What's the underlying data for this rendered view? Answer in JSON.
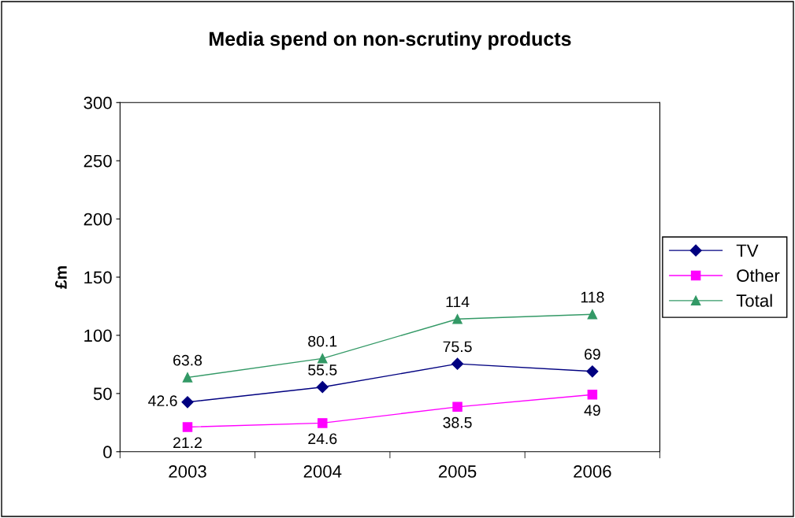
{
  "chart_data": {
    "type": "line",
    "title": "Media spend on non-scrutiny products",
    "ylabel": "£m",
    "categories": [
      "2003",
      "2004",
      "2005",
      "2006"
    ],
    "series": [
      {
        "name": "TV",
        "color": "#000080",
        "marker": "diamond",
        "values": [
          42.6,
          55.5,
          75.5,
          69
        ]
      },
      {
        "name": "Other",
        "color": "#ff00ff",
        "marker": "square",
        "values": [
          21.2,
          24.6,
          38.5,
          49
        ]
      },
      {
        "name": "Total",
        "color": "#339966",
        "marker": "triangle",
        "values": [
          63.8,
          80.1,
          114,
          118
        ]
      }
    ],
    "ylim": [
      0,
      300
    ],
    "yticks": [
      0,
      50,
      100,
      150,
      200,
      250,
      300
    ],
    "grid": false,
    "legend": "right",
    "data_labels": true
  }
}
